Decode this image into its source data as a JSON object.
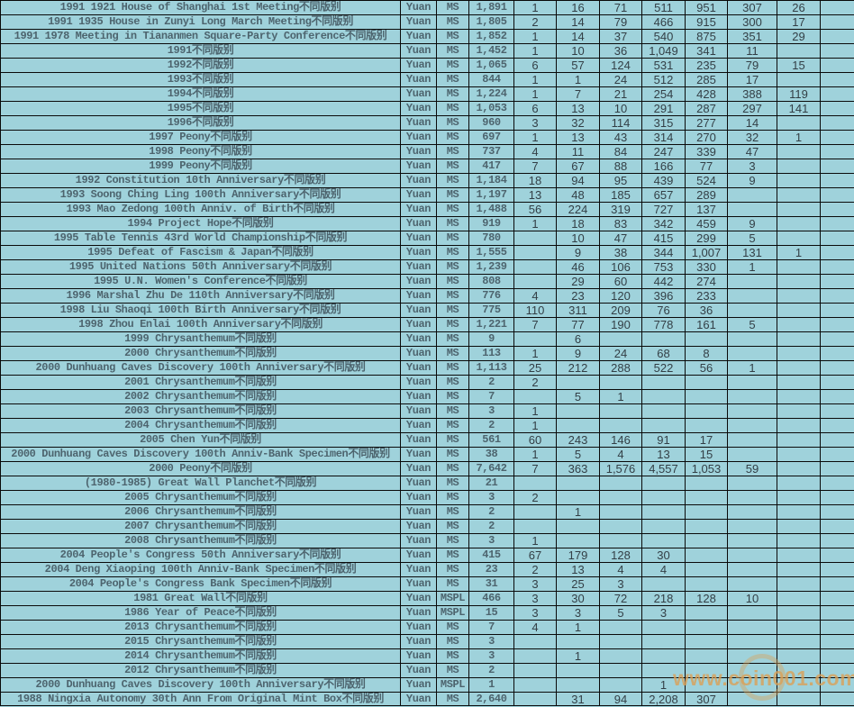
{
  "colors": {
    "background": "#9fd2db",
    "grid_line": "#0a0a0a",
    "label_text": "#4d646e",
    "value_text": "#333f46",
    "watermark": "#dba056"
  },
  "watermark": {
    "text": "www.coin001.com"
  },
  "table": {
    "column_roles": [
      "description",
      "unit",
      "grade",
      "total",
      "v1",
      "v2",
      "v3",
      "v4",
      "v5",
      "v6",
      "v7",
      "v8"
    ],
    "rows": [
      [
        "1991 1921 House of Shanghai 1st Meeting不同版别",
        "Yuan",
        "MS",
        "1,891",
        "1",
        "16",
        "71",
        "511",
        "951",
        "307",
        "26",
        ""
      ],
      [
        "1991 1935 House in Zunyi Long March Meeting不同版别",
        "Yuan",
        "MS",
        "1,805",
        "2",
        "14",
        "79",
        "466",
        "915",
        "300",
        "17",
        ""
      ],
      [
        "1991 1978 Meeting in Tiananmen Square-Party Conference不同版别",
        "Yuan",
        "MS",
        "1,852",
        "1",
        "14",
        "37",
        "540",
        "875",
        "351",
        "29",
        ""
      ],
      [
        "1991不同版别",
        "Yuan",
        "MS",
        "1,452",
        "1",
        "10",
        "36",
        "1,049",
        "341",
        "11",
        "",
        ""
      ],
      [
        "1992不同版别",
        "Yuan",
        "MS",
        "1,065",
        "6",
        "57",
        "124",
        "531",
        "235",
        "79",
        "15",
        ""
      ],
      [
        "1993不同版别",
        "Yuan",
        "MS",
        "844",
        "1",
        "1",
        "24",
        "512",
        "285",
        "17",
        "",
        ""
      ],
      [
        "1994不同版别",
        "Yuan",
        "MS",
        "1,224",
        "1",
        "7",
        "21",
        "254",
        "428",
        "388",
        "119",
        ""
      ],
      [
        "1995不同版别",
        "Yuan",
        "MS",
        "1,053",
        "6",
        "13",
        "10",
        "291",
        "287",
        "297",
        "141",
        ""
      ],
      [
        "1996不同版别",
        "Yuan",
        "MS",
        "960",
        "3",
        "32",
        "114",
        "315",
        "277",
        "14",
        "",
        ""
      ],
      [
        "1997 Peony不同版别",
        "Yuan",
        "MS",
        "697",
        "1",
        "13",
        "43",
        "314",
        "270",
        "32",
        "1",
        ""
      ],
      [
        "1998 Peony不同版别",
        "Yuan",
        "MS",
        "737",
        "4",
        "11",
        "84",
        "247",
        "339",
        "47",
        "",
        ""
      ],
      [
        "1999 Peony不同版别",
        "Yuan",
        "MS",
        "417",
        "7",
        "67",
        "88",
        "166",
        "77",
        "3",
        "",
        ""
      ],
      [
        "1992 Constitution 10th Anniversary不同版别",
        "Yuan",
        "MS",
        "1,184",
        "18",
        "94",
        "95",
        "439",
        "524",
        "9",
        "",
        ""
      ],
      [
        "1993 Soong Ching Ling 100th Anniversary不同版别",
        "Yuan",
        "MS",
        "1,197",
        "13",
        "48",
        "185",
        "657",
        "289",
        "",
        "",
        ""
      ],
      [
        "1993 Mao Zedong 100th Anniv. of Birth不同版别",
        "Yuan",
        "MS",
        "1,488",
        "56",
        "224",
        "319",
        "727",
        "137",
        "",
        "",
        ""
      ],
      [
        "1994 Project Hope不同版别",
        "Yuan",
        "MS",
        "919",
        "1",
        "18",
        "83",
        "342",
        "459",
        "9",
        "",
        ""
      ],
      [
        "1995 Table Tennis 43rd World Championship不同版别",
        "Yuan",
        "MS",
        "780",
        "",
        "10",
        "47",
        "415",
        "299",
        "5",
        "",
        ""
      ],
      [
        "1995 Defeat of Fascism & Japan不同版别",
        "Yuan",
        "MS",
        "1,555",
        "",
        "9",
        "38",
        "344",
        "1,007",
        "131",
        "1",
        ""
      ],
      [
        "1995 United Nations 50th Anniversary不同版别",
        "Yuan",
        "MS",
        "1,239",
        "",
        "46",
        "106",
        "753",
        "330",
        "1",
        "",
        ""
      ],
      [
        "1995 U.N. Women's Conference不同版别",
        "Yuan",
        "MS",
        "808",
        "",
        "29",
        "60",
        "442",
        "274",
        "",
        "",
        ""
      ],
      [
        "1996 Marshal Zhu De 110th Anniversary不同版别",
        "Yuan",
        "MS",
        "776",
        "4",
        "23",
        "120",
        "396",
        "233",
        "",
        "",
        ""
      ],
      [
        "1998 Liu Shaoqi 100th Birth Anniversary不同版别",
        "Yuan",
        "MS",
        "775",
        "110",
        "311",
        "209",
        "76",
        "36",
        "",
        "",
        ""
      ],
      [
        "1998 Zhou Enlai 100th Anniversary不同版别",
        "Yuan",
        "MS",
        "1,221",
        "7",
        "77",
        "190",
        "778",
        "161",
        "5",
        "",
        ""
      ],
      [
        "1999 Chrysanthemum不同版别",
        "Yuan",
        "MS",
        "9",
        "",
        "6",
        "",
        "",
        "",
        "",
        "",
        ""
      ],
      [
        "2000 Chrysanthemum不同版别",
        "Yuan",
        "MS",
        "113",
        "1",
        "9",
        "24",
        "68",
        "8",
        "",
        "",
        ""
      ],
      [
        "2000 Dunhuang Caves Discovery 100th Anniversary不同版别",
        "Yuan",
        "MS",
        "1,113",
        "25",
        "212",
        "288",
        "522",
        "56",
        "1",
        "",
        ""
      ],
      [
        "2001 Chrysanthemum不同版别",
        "Yuan",
        "MS",
        "2",
        "2",
        "",
        "",
        "",
        "",
        "",
        "",
        ""
      ],
      [
        "2002 Chrysanthemum不同版别",
        "Yuan",
        "MS",
        "7",
        "",
        "5",
        "1",
        "",
        "",
        "",
        "",
        ""
      ],
      [
        "2003 Chrysanthemum不同版别",
        "Yuan",
        "MS",
        "3",
        "1",
        "",
        "",
        "",
        "",
        "",
        "",
        ""
      ],
      [
        "2004 Chrysanthemum不同版别",
        "Yuan",
        "MS",
        "2",
        "1",
        "",
        "",
        "",
        "",
        "",
        "",
        ""
      ],
      [
        "2005 Chen Yun不同版别",
        "Yuan",
        "MS",
        "561",
        "60",
        "243",
        "146",
        "91",
        "17",
        "",
        "",
        ""
      ],
      [
        "2000 Dunhuang Caves Discovery 100th Anniv-Bank Specimen不同版别",
        "Yuan",
        "MS",
        "38",
        "1",
        "5",
        "4",
        "13",
        "15",
        "",
        "",
        ""
      ],
      [
        "2000 Peony不同版别",
        "Yuan",
        "MS",
        "7,642",
        "7",
        "363",
        "1,576",
        "4,557",
        "1,053",
        "59",
        "",
        ""
      ],
      [
        "(1980-1985) Great Wall Planchet不同版别",
        "Yuan",
        "MS",
        "21",
        "",
        "",
        "",
        "",
        "",
        "",
        "",
        ""
      ],
      [
        "2005 Chrysanthemum不同版别",
        "Yuan",
        "MS",
        "3",
        "2",
        "",
        "",
        "",
        "",
        "",
        "",
        ""
      ],
      [
        "2006 Chrysanthemum不同版别",
        "Yuan",
        "MS",
        "2",
        "",
        "1",
        "",
        "",
        "",
        "",
        "",
        ""
      ],
      [
        "2007 Chrysanthemum不同版别",
        "Yuan",
        "MS",
        "2",
        "",
        "",
        "",
        "",
        "",
        "",
        "",
        ""
      ],
      [
        "2008 Chrysanthemum不同版别",
        "Yuan",
        "MS",
        "3",
        "1",
        "",
        "",
        "",
        "",
        "",
        "",
        ""
      ],
      [
        "2004 People's Congress 50th Anniversary不同版别",
        "Yuan",
        "MS",
        "415",
        "67",
        "179",
        "128",
        "30",
        "",
        "",
        "",
        ""
      ],
      [
        "2004 Deng Xiaoping 100th Anniv-Bank Specimen不同版别",
        "Yuan",
        "MS",
        "23",
        "2",
        "13",
        "4",
        "4",
        "",
        "",
        "",
        ""
      ],
      [
        "2004 People's Congress Bank Specimen不同版别",
        "Yuan",
        "MS",
        "31",
        "3",
        "25",
        "3",
        "",
        "",
        "",
        "",
        ""
      ],
      [
        "1981 Great Wall不同版别",
        "Yuan",
        "MSPL",
        "466",
        "3",
        "30",
        "72",
        "218",
        "128",
        "10",
        "",
        ""
      ],
      [
        "1986 Year of Peace不同版别",
        "Yuan",
        "MSPL",
        "15",
        "3",
        "3",
        "5",
        "3",
        "",
        "",
        "",
        ""
      ],
      [
        "2013 Chrysanthemum不同版别",
        "Yuan",
        "MS",
        "7",
        "4",
        "1",
        "",
        "",
        "",
        "",
        "",
        ""
      ],
      [
        "2015 Chrysanthemum不同版别",
        "Yuan",
        "MS",
        "3",
        "",
        "",
        "",
        "",
        "",
        "",
        "",
        ""
      ],
      [
        "2014 Chrysanthemum不同版别",
        "Yuan",
        "MS",
        "3",
        "",
        "1",
        "",
        "",
        "",
        "",
        "",
        ""
      ],
      [
        "2012 Chrysanthemum不同版别",
        "Yuan",
        "MS",
        "2",
        "",
        "",
        "",
        "",
        "",
        "",
        "",
        ""
      ],
      [
        "2000 Dunhuang Caves Discovery 100th Anniversary不同版别",
        "Yuan",
        "MSPL",
        "1",
        "",
        "",
        "",
        "1",
        "",
        "",
        "",
        ""
      ],
      [
        "1988 Ningxia Autonomy 30th Ann From Original Mint Box不同版别",
        "Yuan",
        "MS",
        "2,640",
        "",
        "31",
        "94",
        "2,208",
        "307",
        "",
        "",
        ""
      ]
    ]
  }
}
